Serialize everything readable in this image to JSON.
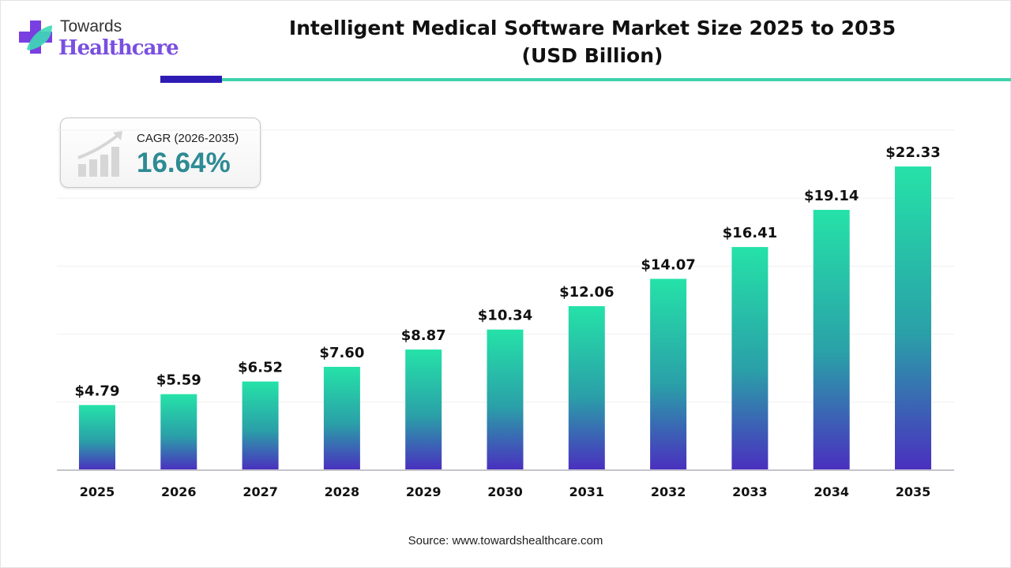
{
  "brand": {
    "line1": "Towards",
    "line2": "Healthcare"
  },
  "title_line1": "Intelligent Medical Software Market Size 2025 to 2035",
  "title_line2": "(USD Billion)",
  "cagr": {
    "label": "CAGR (2026-2035)",
    "value": "16.64%",
    "icon": "growth-chart-icon"
  },
  "source": "Source: www.towardshealthcare.com",
  "colors": {
    "bar_top": "#25e2a8",
    "bar_bottom": "#4a2fbf",
    "accent_dark": "#2e1bb3",
    "accent_teal": "#3dd2ac",
    "cagr_value": "#2e8b94"
  },
  "chart_data": {
    "type": "bar",
    "title": "Intelligent Medical Software Market Size 2025 to 2035 (USD Billion)",
    "categories": [
      "2025",
      "2026",
      "2027",
      "2028",
      "2029",
      "2030",
      "2031",
      "2032",
      "2033",
      "2034",
      "2035"
    ],
    "values": [
      4.79,
      5.59,
      6.52,
      7.6,
      8.87,
      10.34,
      12.06,
      14.07,
      16.41,
      19.14,
      22.33
    ],
    "data_labels": [
      "$4.79",
      "$5.59",
      "$6.52",
      "$7.60",
      "$8.87",
      "$10.34",
      "$12.06",
      "$14.07",
      "$16.41",
      "$19.14",
      "$22.33"
    ],
    "xlabel": "",
    "ylabel": "",
    "ylim": [
      0,
      25
    ],
    "grid": true,
    "y_axis_visible": false
  }
}
